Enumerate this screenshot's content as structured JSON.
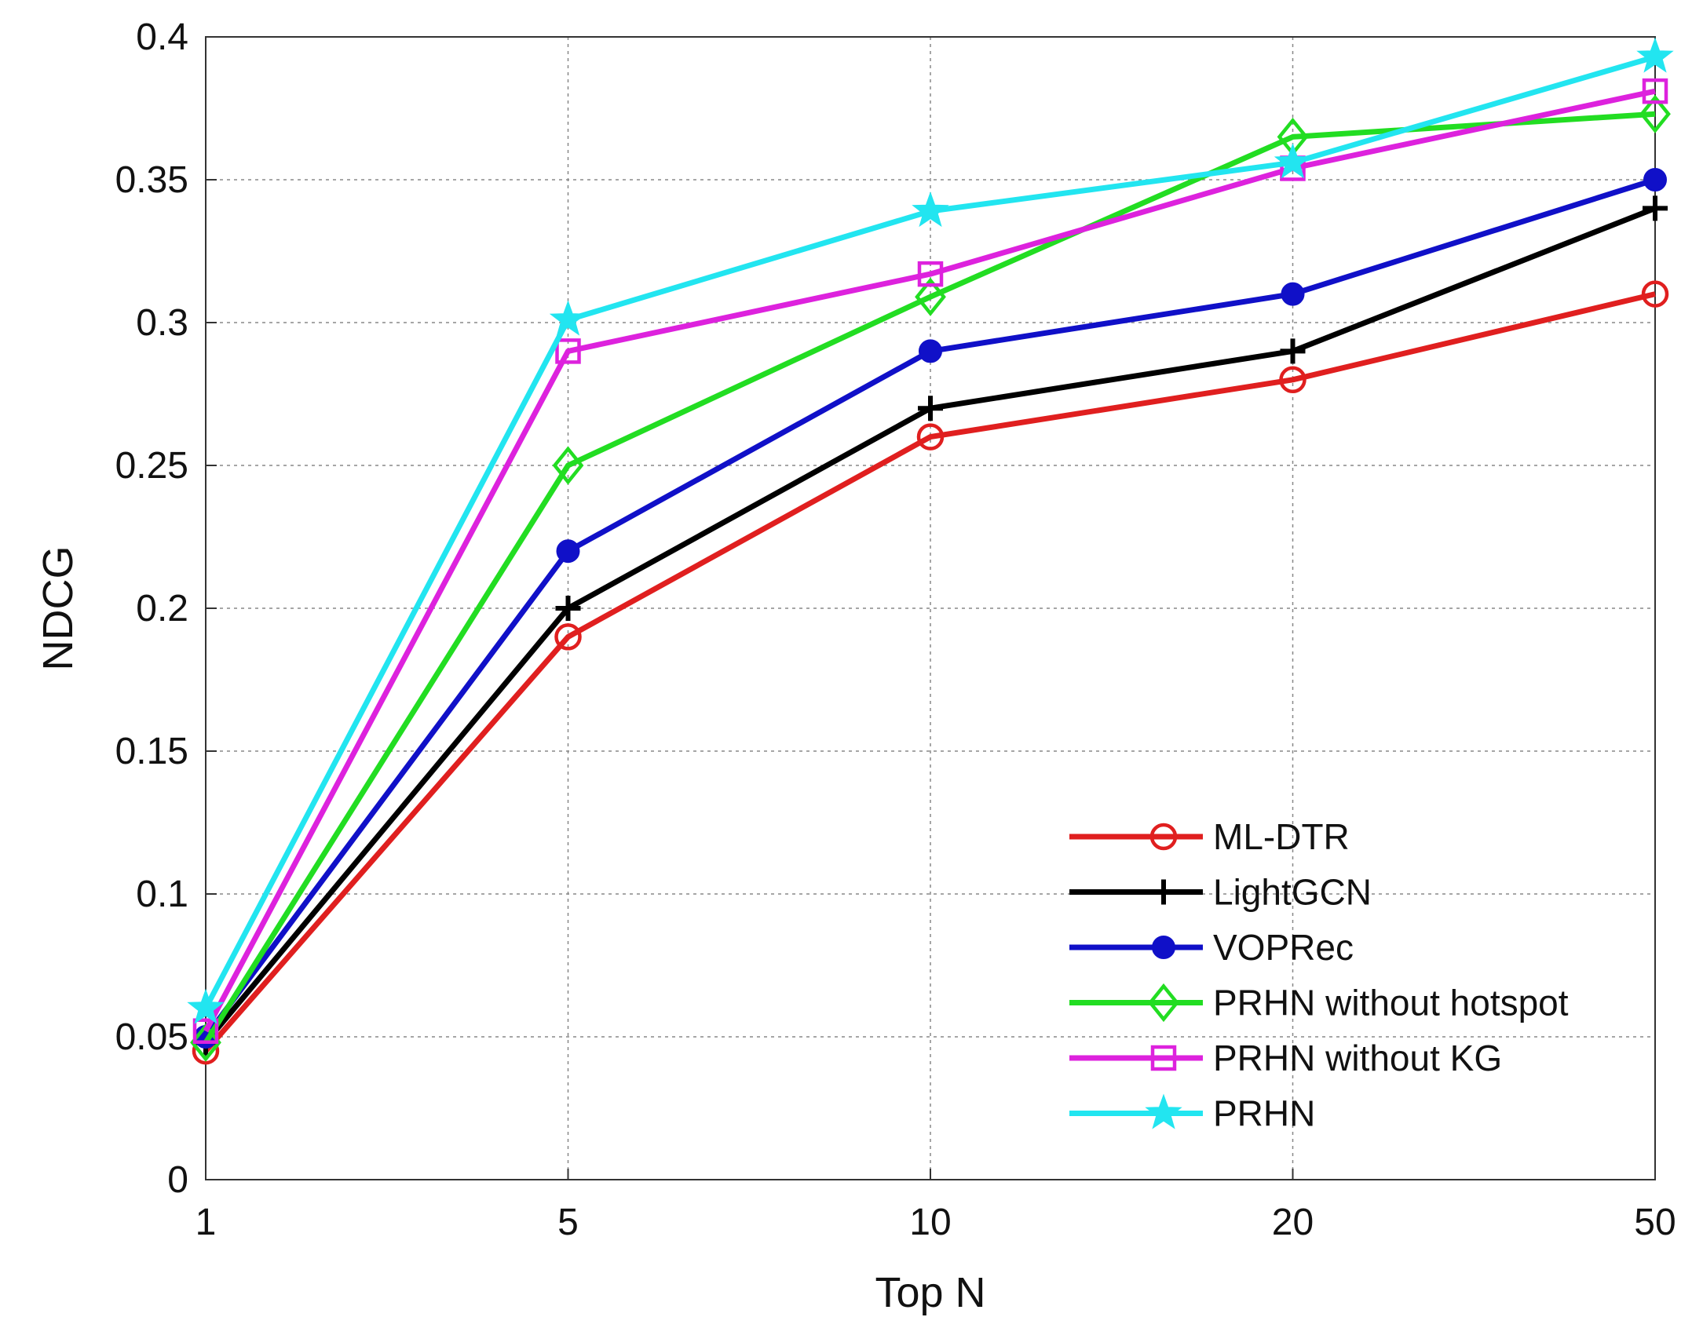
{
  "chart_data": {
    "type": "line",
    "title": "",
    "xlabel": "Top N",
    "ylabel": "NDCG",
    "categories": [
      "1",
      "5",
      "10",
      "20",
      "50"
    ],
    "ylim": [
      0,
      0.4
    ],
    "yticks": [
      "0",
      "0.05",
      "0.1",
      "0.15",
      "0.2",
      "0.25",
      "0.3",
      "0.35",
      "0.4"
    ],
    "grid": true,
    "legend_position": "bottom-right",
    "series": [
      {
        "name": "ML-DTR",
        "color": "#e01f1f",
        "marker": "circle-open",
        "values": [
          0.045,
          0.19,
          0.26,
          0.28,
          0.31
        ]
      },
      {
        "name": "LightGCN",
        "color": "#000000",
        "marker": "plus",
        "values": [
          0.048,
          0.2,
          0.27,
          0.29,
          0.34
        ]
      },
      {
        "name": "VOPRec",
        "color": "#1010c8",
        "marker": "circle-filled",
        "values": [
          0.05,
          0.22,
          0.29,
          0.31,
          0.35
        ]
      },
      {
        "name": "PRHN without hotspot",
        "color": "#22dd22",
        "marker": "diamond",
        "values": [
          0.048,
          0.25,
          0.309,
          0.365,
          0.373
        ]
      },
      {
        "name": "PRHN without KG",
        "color": "#dd22dd",
        "marker": "square",
        "values": [
          0.052,
          0.29,
          0.317,
          0.354,
          0.381
        ]
      },
      {
        "name": "PRHN",
        "color": "#22e5f0",
        "marker": "star",
        "values": [
          0.06,
          0.301,
          0.339,
          0.356,
          0.393
        ]
      }
    ]
  }
}
